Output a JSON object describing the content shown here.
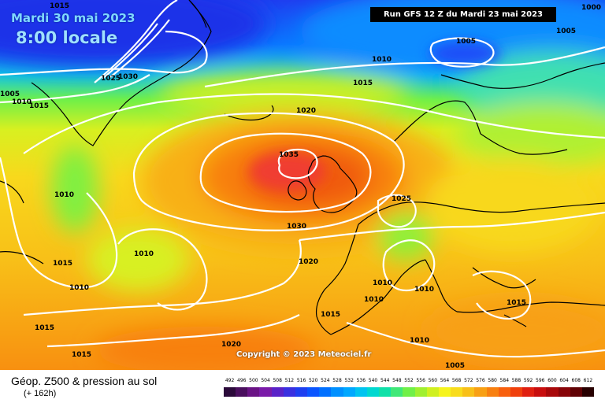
{
  "header": {
    "date": "Mardi 30 mai 2023",
    "time": "8:00 locale",
    "run": "Run GFS 12 Z du Mardi 23 mai 2023"
  },
  "copyright": "Copyright © 2023 Meteociel.fr",
  "footer": {
    "title": "Géop. Z500 & pression au sol",
    "subtitle": "(+ 162h)"
  },
  "isobar_labels": [
    "1015",
    "1005",
    "1010",
    "1015",
    "1025",
    "1030",
    "1010",
    "1015",
    "1020",
    "1035",
    "1000",
    "1005",
    "1005",
    "1010",
    "1025",
    "1030",
    "1015",
    "1010",
    "1010",
    "1020",
    "1010",
    "1010",
    "1010",
    "1015",
    "1015",
    "1015",
    "1015",
    "1020",
    "1010",
    "1005"
  ],
  "scale": {
    "values": [
      "492",
      "496",
      "500",
      "504",
      "508",
      "512",
      "516",
      "520",
      "524",
      "528",
      "532",
      "536",
      "540",
      "544",
      "548",
      "552",
      "556",
      "560",
      "564",
      "568",
      "572",
      "576",
      "580",
      "584",
      "588",
      "592",
      "596",
      "600",
      "604",
      "608",
      "612"
    ],
    "colors": [
      "#2b0a3a",
      "#4a0f5e",
      "#6a1385",
      "#7a1aa8",
      "#5a22c8",
      "#3a30e0",
      "#1e3ff0",
      "#0a55ff",
      "#0070ff",
      "#0090ff",
      "#00a8ff",
      "#00c4f0",
      "#00d8d0",
      "#10e0a8",
      "#40e878",
      "#70f048",
      "#a0f030",
      "#d0f020",
      "#f6f41c",
      "#f8dc1c",
      "#f8c018",
      "#f8a014",
      "#f88010",
      "#f8600e",
      "#f0400c",
      "#e02010",
      "#c80e0e",
      "#a8080a",
      "#880408",
      "#600204",
      "#280000"
    ]
  }
}
